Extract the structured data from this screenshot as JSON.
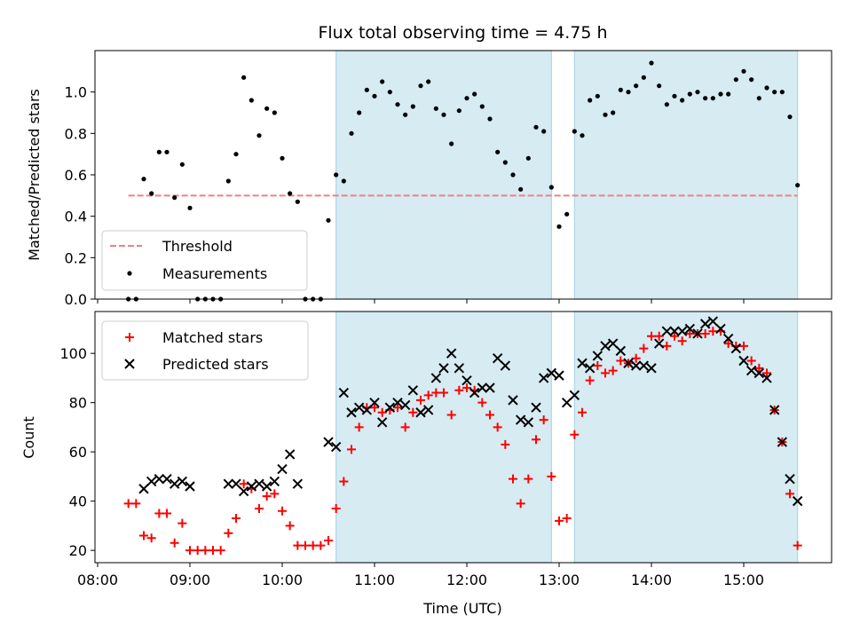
{
  "chart_data": [
    {
      "type": "scatter",
      "title": "Flux total observing time = 4.75 h",
      "xlabel": "",
      "ylabel": "Matched/Predicted stars",
      "ylim": [
        0,
        1.2
      ],
      "yticks": [
        "0.0",
        "0.2",
        "0.4",
        "0.6",
        "0.8",
        "1.0"
      ],
      "shaded_spans": [
        [
          "10:35",
          "12:55"
        ],
        [
          "13:10",
          "15:35"
        ]
      ],
      "threshold": {
        "name": "Threshold",
        "value": 0.5,
        "x_range": [
          "08:20",
          "15:35"
        ],
        "color": "#f08080"
      },
      "legend_position": "lower-left",
      "series": [
        {
          "name": "Measurements",
          "marker": "dot",
          "color": "#000000",
          "points": [
            [
              "08:20",
              0.0
            ],
            [
              "08:25",
              0.0
            ],
            [
              "08:30",
              0.58
            ],
            [
              "08:35",
              0.51
            ],
            [
              "08:40",
              0.71
            ],
            [
              "08:45",
              0.71
            ],
            [
              "08:50",
              0.49
            ],
            [
              "08:55",
              0.65
            ],
            [
              "09:00",
              0.44
            ],
            [
              "09:05",
              0.0
            ],
            [
              "09:10",
              0.0
            ],
            [
              "09:15",
              0.0
            ],
            [
              "09:20",
              0.0
            ],
            [
              "09:25",
              0.57
            ],
            [
              "09:30",
              0.7
            ],
            [
              "09:35",
              1.07
            ],
            [
              "09:40",
              0.96
            ],
            [
              "09:45",
              0.79
            ],
            [
              "09:50",
              0.92
            ],
            [
              "09:55",
              0.9
            ],
            [
              "10:00",
              0.68
            ],
            [
              "10:05",
              0.51
            ],
            [
              "10:10",
              0.47
            ],
            [
              "10:15",
              0.0
            ],
            [
              "10:20",
              0.0
            ],
            [
              "10:25",
              0.0
            ],
            [
              "10:30",
              0.38
            ],
            [
              "10:35",
              0.6
            ],
            [
              "10:40",
              0.57
            ],
            [
              "10:45",
              0.8
            ],
            [
              "10:50",
              0.9
            ],
            [
              "10:55",
              1.01
            ],
            [
              "11:00",
              0.98
            ],
            [
              "11:05",
              1.05
            ],
            [
              "11:10",
              1.0
            ],
            [
              "11:15",
              0.94
            ],
            [
              "11:20",
              0.89
            ],
            [
              "11:25",
              0.93
            ],
            [
              "11:30",
              1.03
            ],
            [
              "11:35",
              1.05
            ],
            [
              "11:40",
              0.92
            ],
            [
              "11:45",
              0.89
            ],
            [
              "11:50",
              0.75
            ],
            [
              "11:55",
              0.91
            ],
            [
              "12:00",
              0.97
            ],
            [
              "12:05",
              0.99
            ],
            [
              "12:10",
              0.93
            ],
            [
              "12:15",
              0.87
            ],
            [
              "12:20",
              0.71
            ],
            [
              "12:25",
              0.66
            ],
            [
              "12:30",
              0.6
            ],
            [
              "12:35",
              0.53
            ],
            [
              "12:40",
              0.68
            ],
            [
              "12:45",
              0.83
            ],
            [
              "12:50",
              0.81
            ],
            [
              "12:55",
              0.54
            ],
            [
              "13:00",
              0.35
            ],
            [
              "13:05",
              0.41
            ],
            [
              "13:10",
              0.81
            ],
            [
              "13:15",
              0.79
            ],
            [
              "13:20",
              0.96
            ],
            [
              "13:25",
              0.98
            ],
            [
              "13:30",
              0.89
            ],
            [
              "13:35",
              0.9
            ],
            [
              "13:40",
              1.01
            ],
            [
              "13:45",
              1.0
            ],
            [
              "13:50",
              1.03
            ],
            [
              "13:55",
              1.07
            ],
            [
              "14:00",
              1.14
            ],
            [
              "14:05",
              1.03
            ],
            [
              "14:10",
              0.94
            ],
            [
              "14:15",
              0.98
            ],
            [
              "14:20",
              0.96
            ],
            [
              "14:25",
              0.99
            ],
            [
              "14:30",
              1.0
            ],
            [
              "14:35",
              0.97
            ],
            [
              "14:40",
              0.97
            ],
            [
              "14:45",
              0.99
            ],
            [
              "14:50",
              0.99
            ],
            [
              "14:55",
              1.06
            ],
            [
              "15:00",
              1.1
            ],
            [
              "15:05",
              1.06
            ],
            [
              "15:10",
              0.97
            ],
            [
              "15:15",
              1.02
            ],
            [
              "15:20",
              1.0
            ],
            [
              "15:25",
              1.0
            ],
            [
              "15:30",
              0.88
            ],
            [
              "15:35",
              0.55
            ]
          ]
        }
      ]
    },
    {
      "type": "scatter",
      "title": "",
      "xlabel": "Time (UTC)",
      "ylabel": "Count",
      "ylim": [
        15,
        117
      ],
      "yticks": [
        "20",
        "40",
        "60",
        "80",
        "100"
      ],
      "xticks": [
        "08:00",
        "09:00",
        "10:00",
        "11:00",
        "12:00",
        "13:00",
        "14:00",
        "15:00"
      ],
      "shaded_spans": [
        [
          "10:35",
          "12:55"
        ],
        [
          "13:10",
          "15:35"
        ]
      ],
      "legend_position": "upper-left",
      "series": [
        {
          "name": "Matched stars",
          "marker": "plus",
          "color": "#ff0000",
          "points": [
            [
              "08:20",
              39
            ],
            [
              "08:25",
              39
            ],
            [
              "08:30",
              26
            ],
            [
              "08:35",
              25
            ],
            [
              "08:40",
              35
            ],
            [
              "08:45",
              35
            ],
            [
              "08:50",
              23
            ],
            [
              "08:55",
              31
            ],
            [
              "09:00",
              20
            ],
            [
              "09:05",
              20
            ],
            [
              "09:10",
              20
            ],
            [
              "09:15",
              20
            ],
            [
              "09:20",
              20
            ],
            [
              "09:25",
              27
            ],
            [
              "09:30",
              33
            ],
            [
              "09:35",
              47
            ],
            [
              "09:40",
              45
            ],
            [
              "09:45",
              37
            ],
            [
              "09:50",
              42
            ],
            [
              "09:55",
              43
            ],
            [
              "10:00",
              36
            ],
            [
              "10:05",
              30
            ],
            [
              "10:10",
              22
            ],
            [
              "10:15",
              22
            ],
            [
              "10:20",
              22
            ],
            [
              "10:25",
              22
            ],
            [
              "10:30",
              24
            ],
            [
              "10:35",
              37
            ],
            [
              "10:40",
              48
            ],
            [
              "10:45",
              61
            ],
            [
              "10:50",
              70
            ],
            [
              "10:55",
              78
            ],
            [
              "11:00",
              78
            ],
            [
              "11:05",
              76
            ],
            [
              "11:10",
              77
            ],
            [
              "11:15",
              78
            ],
            [
              "11:20",
              70
            ],
            [
              "11:25",
              76
            ],
            [
              "11:30",
              81
            ],
            [
              "11:35",
              83
            ],
            [
              "11:40",
              84
            ],
            [
              "11:45",
              84
            ],
            [
              "11:50",
              75
            ],
            [
              "11:55",
              85
            ],
            [
              "12:00",
              86
            ],
            [
              "12:05",
              85
            ],
            [
              "12:10",
              80
            ],
            [
              "12:15",
              75
            ],
            [
              "12:20",
              70
            ],
            [
              "12:25",
              63
            ],
            [
              "12:30",
              49
            ],
            [
              "12:35",
              39
            ],
            [
              "12:40",
              49
            ],
            [
              "12:45",
              65
            ],
            [
              "12:50",
              73
            ],
            [
              "12:55",
              50
            ],
            [
              "13:00",
              32
            ],
            [
              "13:05",
              33
            ],
            [
              "13:10",
              67
            ],
            [
              "13:15",
              76
            ],
            [
              "13:20",
              89
            ],
            [
              "13:25",
              95
            ],
            [
              "13:30",
              92
            ],
            [
              "13:35",
              93
            ],
            [
              "13:40",
              97
            ],
            [
              "13:45",
              96
            ],
            [
              "13:50",
              98
            ],
            [
              "13:55",
              102
            ],
            [
              "14:00",
              107
            ],
            [
              "14:05",
              107
            ],
            [
              "14:10",
              103
            ],
            [
              "14:15",
              107
            ],
            [
              "14:20",
              105
            ],
            [
              "14:25",
              108
            ],
            [
              "14:30",
              108
            ],
            [
              "14:35",
              108
            ],
            [
              "14:40",
              109
            ],
            [
              "14:45",
              109
            ],
            [
              "14:50",
              104
            ],
            [
              "14:55",
              103
            ],
            [
              "15:00",
              103
            ],
            [
              "15:05",
              97
            ],
            [
              "15:10",
              94
            ],
            [
              "15:15",
              92
            ],
            [
              "15:20",
              77
            ],
            [
              "15:25",
              64
            ],
            [
              "15:30",
              43
            ],
            [
              "15:35",
              22
            ]
          ]
        },
        {
          "name": "Predicted stars",
          "marker": "x",
          "color": "#000000",
          "points": [
            [
              "08:30",
              45
            ],
            [
              "08:35",
              48
            ],
            [
              "08:40",
              49
            ],
            [
              "08:45",
              49
            ],
            [
              "08:50",
              47
            ],
            [
              "08:55",
              48
            ],
            [
              "09:00",
              46
            ],
            [
              "09:25",
              47
            ],
            [
              "09:30",
              47
            ],
            [
              "09:35",
              44
            ],
            [
              "09:40",
              46
            ],
            [
              "09:45",
              47
            ],
            [
              "09:50",
              46
            ],
            [
              "09:55",
              48
            ],
            [
              "10:00",
              53
            ],
            [
              "10:05",
              59
            ],
            [
              "10:10",
              47
            ],
            [
              "10:30",
              64
            ],
            [
              "10:35",
              62
            ],
            [
              "10:40",
              84
            ],
            [
              "10:45",
              76
            ],
            [
              "10:50",
              78
            ],
            [
              "10:55",
              77
            ],
            [
              "11:00",
              80
            ],
            [
              "11:05",
              72
            ],
            [
              "11:10",
              78
            ],
            [
              "11:15",
              80
            ],
            [
              "11:20",
              79
            ],
            [
              "11:25",
              85
            ],
            [
              "11:30",
              76
            ],
            [
              "11:35",
              77
            ],
            [
              "11:40",
              90
            ],
            [
              "11:45",
              94
            ],
            [
              "11:50",
              100
            ],
            [
              "11:55",
              94
            ],
            [
              "12:00",
              89
            ],
            [
              "12:05",
              84
            ],
            [
              "12:10",
              86
            ],
            [
              "12:15",
              86
            ],
            [
              "12:20",
              98
            ],
            [
              "12:25",
              95
            ],
            [
              "12:30",
              81
            ],
            [
              "12:35",
              73
            ],
            [
              "12:40",
              72
            ],
            [
              "12:45",
              78
            ],
            [
              "12:50",
              90
            ],
            [
              "12:55",
              92
            ],
            [
              "13:00",
              91
            ],
            [
              "13:05",
              80
            ],
            [
              "13:10",
              83
            ],
            [
              "13:15",
              96
            ],
            [
              "13:20",
              94
            ],
            [
              "13:25",
              99
            ],
            [
              "13:30",
              103
            ],
            [
              "13:35",
              104
            ],
            [
              "13:40",
              101
            ],
            [
              "13:45",
              96
            ],
            [
              "13:50",
              95
            ],
            [
              "13:55",
              95
            ],
            [
              "14:00",
              94
            ],
            [
              "14:05",
              104
            ],
            [
              "14:10",
              109
            ],
            [
              "14:15",
              109
            ],
            [
              "14:20",
              109
            ],
            [
              "14:25",
              110
            ],
            [
              "14:30",
              108
            ],
            [
              "14:35",
              112
            ],
            [
              "14:40",
              113
            ],
            [
              "14:45",
              110
            ],
            [
              "14:50",
              106
            ],
            [
              "14:55",
              102
            ],
            [
              "15:00",
              97
            ],
            [
              "15:05",
              93
            ],
            [
              "15:10",
              92
            ],
            [
              "15:15",
              90
            ],
            [
              "15:20",
              77
            ],
            [
              "15:25",
              64
            ],
            [
              "15:30",
              49
            ],
            [
              "15:35",
              40
            ]
          ]
        }
      ]
    }
  ]
}
